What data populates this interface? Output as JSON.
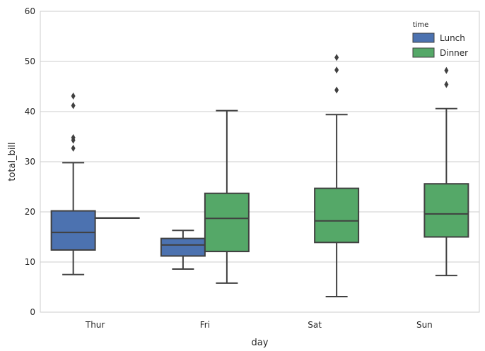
{
  "chart_data": {
    "type": "boxplot",
    "title": "",
    "xlabel": "day",
    "ylabel": "total_bill",
    "ylim": [
      0,
      60
    ],
    "yticks": [
      0,
      10,
      20,
      30,
      40,
      50,
      60
    ],
    "grid": "horizontal",
    "categories": [
      "Thur",
      "Fri",
      "Sat",
      "Sun"
    ],
    "legend": {
      "title": "time",
      "position": "top-right"
    },
    "series": [
      {
        "name": "Lunch",
        "color": "#4c72b0",
        "boxes": [
          {
            "category": "Thur",
            "whisker_low": 7.5,
            "q1": 12.4,
            "median": 15.9,
            "q3": 20.2,
            "whisker_high": 29.8,
            "outliers": [
              32.7,
              34.3,
              34.8,
              41.2,
              43.1
            ]
          },
          {
            "category": "Fri",
            "whisker_low": 8.6,
            "q1": 11.2,
            "median": 13.4,
            "q3": 14.7,
            "whisker_high": 16.3,
            "outliers": []
          }
        ]
      },
      {
        "name": "Dinner",
        "color": "#55a868",
        "boxes": [
          {
            "category": "Thur",
            "whisker_low": 18.8,
            "q1": 18.8,
            "median": 18.8,
            "q3": 18.8,
            "whisker_high": 18.8,
            "outliers": []
          },
          {
            "category": "Fri",
            "whisker_low": 5.8,
            "q1": 12.1,
            "median": 18.7,
            "q3": 23.7,
            "whisker_high": 40.2,
            "outliers": []
          },
          {
            "category": "Sat",
            "whisker_low": 3.1,
            "q1": 13.9,
            "median": 18.2,
            "q3": 24.7,
            "whisker_high": 39.4,
            "outliers": [
              44.3,
              48.3,
              50.8
            ]
          },
          {
            "category": "Sun",
            "whisker_low": 7.3,
            "q1": 15.0,
            "median": 19.6,
            "q3": 25.6,
            "whisker_high": 40.6,
            "outliers": [
              45.4,
              48.2
            ]
          }
        ]
      }
    ]
  }
}
